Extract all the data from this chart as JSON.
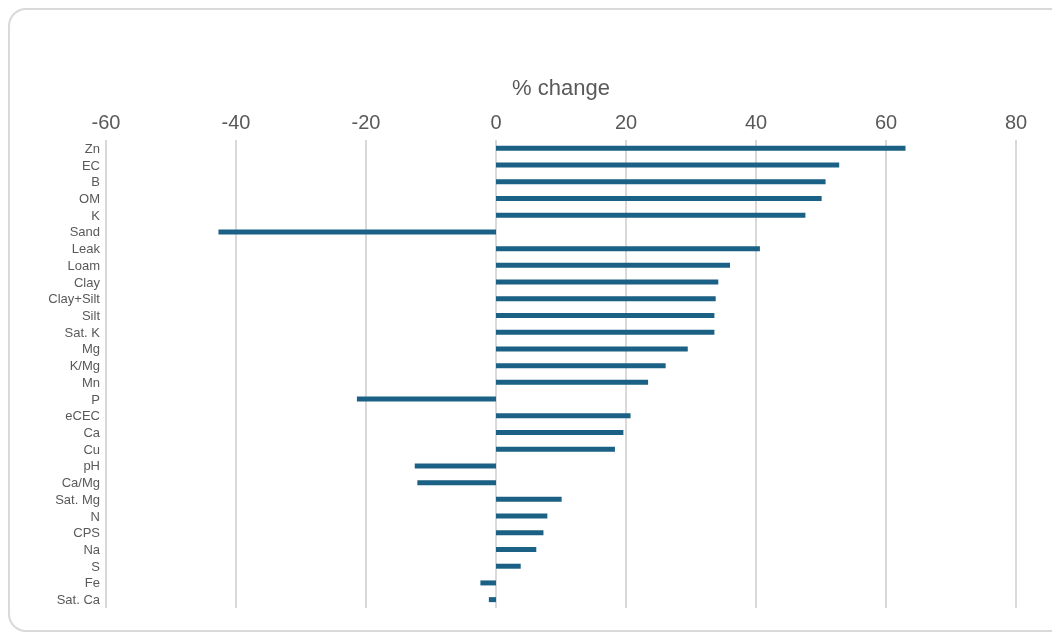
{
  "chart_data": {
    "type": "bar",
    "orientation": "horizontal",
    "xlabel": "% change",
    "categories": [
      "Zn",
      "EC",
      "B",
      "OM",
      "K",
      "Sand",
      "Leak",
      "Loam",
      "Clay",
      "Clay+Silt",
      "Silt",
      "Sat. K",
      "Mg",
      "K/Mg",
      "Mn",
      "P",
      "eCEC",
      "Ca",
      "Cu",
      "pH",
      "Ca/Mg",
      "Sat. Mg",
      "N",
      "CPS",
      "Na",
      "S",
      "Fe",
      "Sat. Ca"
    ],
    "values": [
      63.0,
      52.8,
      50.7,
      50.1,
      47.6,
      -42.7,
      40.6,
      36.0,
      34.2,
      33.8,
      33.6,
      33.6,
      29.5,
      26.1,
      23.4,
      -21.4,
      20.7,
      19.6,
      18.3,
      -12.5,
      -12.1,
      10.1,
      7.9,
      7.3,
      6.2,
      3.8,
      -2.4,
      -1.1
    ],
    "color": "#1a6185",
    "xlim": [
      -60,
      80
    ],
    "xticks": [
      -60,
      -40,
      -20,
      0,
      20,
      40,
      60,
      80
    ],
    "grid": "x"
  }
}
